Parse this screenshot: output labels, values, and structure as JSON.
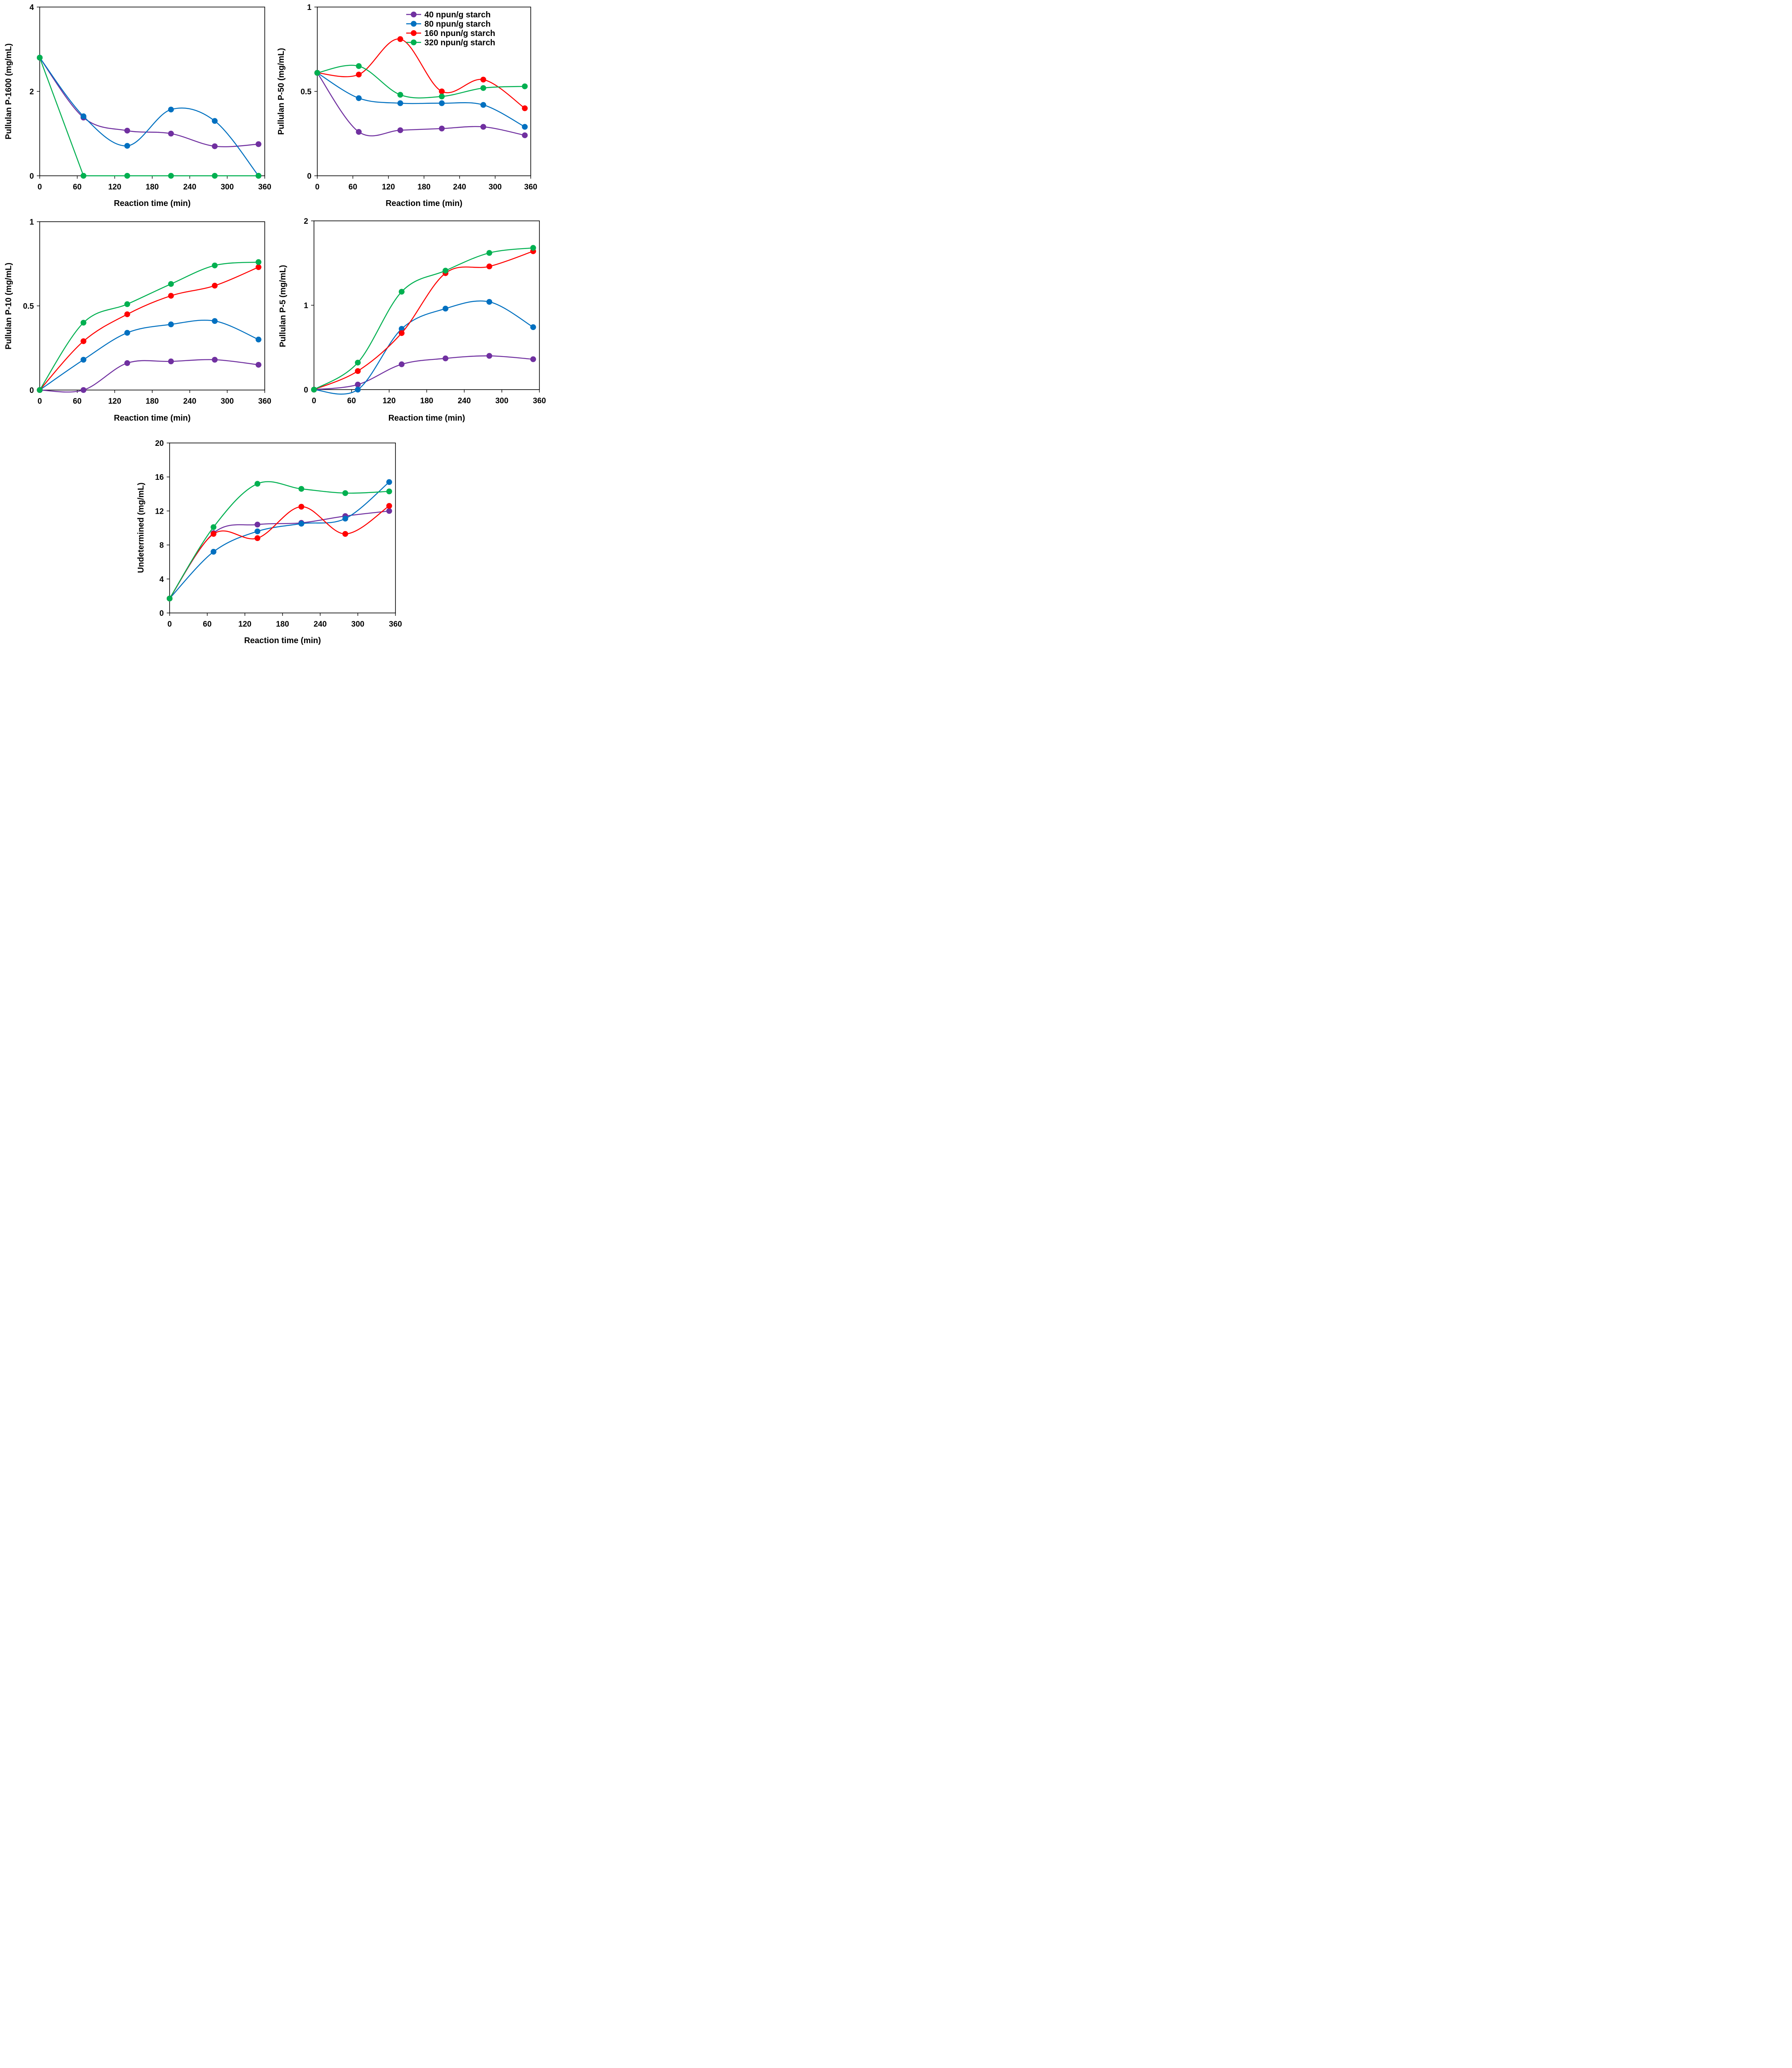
{
  "colors": {
    "40 npun/g starch": "#7030A0",
    "80 npun/g starch": "#0070C0",
    "160 npun/g starch": "#FF0000",
    "320 npun/g starch": "#00B050"
  },
  "legend": {
    "items": [
      "40 npun/g starch",
      "80 npun/g starch",
      "160 npun/g starch",
      "320 npun/g starch"
    ],
    "placement": "top-right of second panel"
  },
  "chart_data": [
    {
      "id": "p1600",
      "type": "line",
      "xlabel": "Reaction time (min)",
      "ylabel": "Pullulan P-1600 (mg/mL)",
      "xlim": [
        0,
        360
      ],
      "xticks": [
        0,
        60,
        120,
        180,
        240,
        300,
        360
      ],
      "ylim": [
        0,
        4
      ],
      "yticks": [
        0,
        2,
        4
      ],
      "x": [
        0,
        70,
        140,
        210,
        280,
        350
      ],
      "series": [
        {
          "name": "40 npun/g starch",
          "values": [
            2.8,
            1.38,
            1.07,
            1.0,
            0.7,
            0.75
          ]
        },
        {
          "name": "80 npun/g starch",
          "values": [
            2.8,
            1.41,
            0.71,
            1.57,
            1.3,
            0.0
          ]
        },
        {
          "name": "320 npun/g starch",
          "values": [
            2.8,
            0.0,
            0.0,
            0.0,
            0.0,
            0.0
          ]
        }
      ]
    },
    {
      "id": "p50",
      "type": "line",
      "xlabel": "Reaction time (min)",
      "ylabel": "Pullulan P-50 (mg/mL)",
      "xlim": [
        0,
        360
      ],
      "xticks": [
        0,
        60,
        120,
        180,
        240,
        300,
        360
      ],
      "ylim": [
        0,
        1
      ],
      "yticks": [
        0,
        0.5,
        1
      ],
      "x": [
        0,
        70,
        140,
        210,
        280,
        350
      ],
      "series": [
        {
          "name": "40 npun/g starch",
          "values": [
            0.61,
            0.26,
            0.27,
            0.28,
            0.29,
            0.24
          ]
        },
        {
          "name": "80 npun/g starch",
          "values": [
            0.61,
            0.46,
            0.43,
            0.43,
            0.42,
            0.29
          ]
        },
        {
          "name": "160 npun/g starch",
          "values": [
            0.61,
            0.6,
            0.81,
            0.5,
            0.57,
            0.4
          ]
        },
        {
          "name": "320 npun/g starch",
          "values": [
            0.61,
            0.65,
            0.48,
            0.47,
            0.52,
            0.53
          ]
        }
      ]
    },
    {
      "id": "p10",
      "type": "line",
      "xlabel": "Reaction time (min)",
      "ylabel": "Pullulan P-10 (mg/mL)",
      "xlim": [
        0,
        360
      ],
      "xticks": [
        0,
        60,
        120,
        180,
        240,
        300,
        360
      ],
      "ylim": [
        0,
        1
      ],
      "yticks": [
        0,
        0.5,
        1
      ],
      "x": [
        0,
        70,
        140,
        210,
        280,
        350
      ],
      "series": [
        {
          "name": "40 npun/g starch",
          "values": [
            0.0,
            0.0,
            0.16,
            0.17,
            0.18,
            0.15
          ]
        },
        {
          "name": "80 npun/g starch",
          "values": [
            0.0,
            0.18,
            0.34,
            0.39,
            0.41,
            0.3
          ]
        },
        {
          "name": "160 npun/g starch",
          "values": [
            0.0,
            0.29,
            0.45,
            0.56,
            0.62,
            0.73
          ]
        },
        {
          "name": "320 npun/g starch",
          "values": [
            0.0,
            0.4,
            0.51,
            0.63,
            0.74,
            0.76
          ]
        }
      ]
    },
    {
      "id": "p5",
      "type": "line",
      "xlabel": "Reaction time (min)",
      "ylabel": "Pullulan P-5 (mg/mL)",
      "xlim": [
        0,
        360
      ],
      "xticks": [
        0,
        60,
        120,
        180,
        240,
        300,
        360
      ],
      "ylim": [
        0,
        2
      ],
      "yticks": [
        0,
        1,
        2
      ],
      "x": [
        0,
        70,
        140,
        210,
        280,
        350
      ],
      "series": [
        {
          "name": "40 npun/g starch",
          "values": [
            0.0,
            0.06,
            0.3,
            0.37,
            0.4,
            0.36
          ]
        },
        {
          "name": "80 npun/g starch",
          "values": [
            0.0,
            0.0,
            0.72,
            0.96,
            1.04,
            0.74
          ]
        },
        {
          "name": "160 npun/g starch",
          "values": [
            0.0,
            0.22,
            0.67,
            1.38,
            1.46,
            1.64
          ]
        },
        {
          "name": "320 npun/g starch",
          "values": [
            0.0,
            0.32,
            1.16,
            1.41,
            1.62,
            1.68
          ]
        }
      ]
    },
    {
      "id": "undetermined",
      "type": "line",
      "xlabel": "Reaction time (min)",
      "ylabel": "Undetermined  (mg/mL)",
      "xlim": [
        0,
        360
      ],
      "xticks": [
        0,
        60,
        120,
        180,
        240,
        300,
        360
      ],
      "ylim": [
        0,
        20
      ],
      "yticks": [
        0,
        4,
        8,
        12,
        16,
        20
      ],
      "x": [
        0,
        70,
        140,
        210,
        280,
        350
      ],
      "series": [
        {
          "name": "40 npun/g starch",
          "values": [
            1.7,
            9.4,
            10.4,
            10.6,
            11.4,
            12.0
          ]
        },
        {
          "name": "80 npun/g starch",
          "values": [
            1.7,
            7.2,
            9.6,
            10.5,
            11.1,
            15.4
          ]
        },
        {
          "name": "160 npun/g starch",
          "values": [
            1.7,
            9.3,
            8.8,
            12.5,
            9.3,
            12.6
          ]
        },
        {
          "name": "320 npun/g starch",
          "values": [
            1.7,
            10.1,
            15.2,
            14.6,
            14.1,
            14.3
          ]
        }
      ]
    }
  ]
}
